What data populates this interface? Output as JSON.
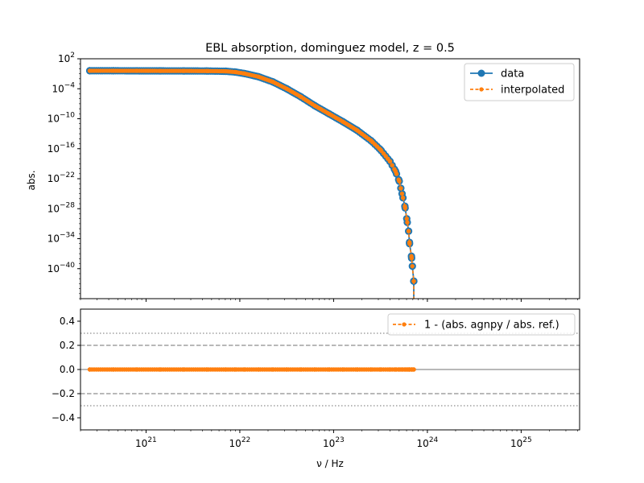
{
  "chart_data": [
    {
      "type": "line",
      "title": "EBL absorption, dominguez model, z = 0.5",
      "xlabel": "",
      "ylabel": "abs.",
      "xscale": "log",
      "yscale": "log",
      "xlim": [
        2e+20,
        4.2e+25
      ],
      "ylim": [
        1e-46,
        100.0
      ],
      "yticks": [
        {
          "exp": 2,
          "label": "10",
          "sup": "2"
        },
        {
          "exp": -4,
          "label": "10",
          "sup": "−4"
        },
        {
          "exp": -10,
          "label": "10",
          "sup": "−10"
        },
        {
          "exp": -16,
          "label": "10",
          "sup": "−16"
        },
        {
          "exp": -22,
          "label": "10",
          "sup": "−22"
        },
        {
          "exp": -28,
          "label": "10",
          "sup": "−28"
        },
        {
          "exp": -34,
          "label": "10",
          "sup": "−34"
        },
        {
          "exp": -40,
          "label": "10",
          "sup": "−40"
        }
      ],
      "legend_position": "top-right",
      "grid": false,
      "series": [
        {
          "name": "data",
          "color": "#1f77b4",
          "style": "solid-circle-markers",
          "points": [
            [
              20.4,
              -0.4
            ],
            [
              20.65,
              -0.4
            ],
            [
              20.9,
              -0.41
            ],
            [
              21.15,
              -0.42
            ],
            [
              21.4,
              -0.43
            ],
            [
              21.65,
              -0.45
            ],
            [
              21.85,
              -0.5
            ],
            [
              21.95,
              -0.65
            ],
            [
              22.05,
              -0.95
            ],
            [
              22.2,
              -1.6
            ],
            [
              22.35,
              -2.6
            ],
            [
              22.5,
              -4.0
            ],
            [
              22.65,
              -5.6
            ],
            [
              22.8,
              -7.4
            ],
            [
              22.95,
              -9.0
            ],
            [
              23.1,
              -10.6
            ],
            [
              23.25,
              -12.3
            ],
            [
              23.4,
              -14.4
            ],
            [
              23.5,
              -16.2
            ],
            [
              23.6,
              -18.5
            ],
            [
              23.66,
              -20.5
            ],
            [
              23.7,
              -22.5
            ],
            [
              23.73,
              -25.0
            ],
            [
              23.76,
              -27.5
            ],
            [
              23.78,
              -30.0
            ],
            [
              23.8,
              -32.5
            ],
            [
              23.81,
              -35.0
            ],
            [
              23.83,
              -37.5
            ],
            [
              23.84,
              -39.5
            ],
            [
              23.855,
              -42.5
            ]
          ]
        },
        {
          "name": "interpolated",
          "color": "#ff7f0e",
          "style": "dashed-small-markers",
          "points": [
            [
              20.4,
              -0.4
            ],
            [
              20.65,
              -0.4
            ],
            [
              20.9,
              -0.41
            ],
            [
              21.15,
              -0.42
            ],
            [
              21.4,
              -0.43
            ],
            [
              21.65,
              -0.45
            ],
            [
              21.85,
              -0.5
            ],
            [
              21.95,
              -0.65
            ],
            [
              22.05,
              -0.95
            ],
            [
              22.2,
              -1.6
            ],
            [
              22.35,
              -2.6
            ],
            [
              22.5,
              -4.0
            ],
            [
              22.65,
              -5.6
            ],
            [
              22.8,
              -7.4
            ],
            [
              22.95,
              -9.0
            ],
            [
              23.1,
              -10.6
            ],
            [
              23.25,
              -12.3
            ],
            [
              23.4,
              -14.4
            ],
            [
              23.5,
              -16.2
            ],
            [
              23.6,
              -18.5
            ],
            [
              23.66,
              -20.5
            ],
            [
              23.7,
              -22.5
            ],
            [
              23.73,
              -25.0
            ],
            [
              23.76,
              -27.5
            ],
            [
              23.78,
              -30.0
            ],
            [
              23.8,
              -32.5
            ],
            [
              23.81,
              -35.0
            ],
            [
              23.83,
              -37.5
            ],
            [
              23.84,
              -39.5
            ],
            [
              23.855,
              -42.5
            ]
          ]
        }
      ]
    },
    {
      "type": "line",
      "title": "",
      "xlabel": "ν / Hz",
      "ylabel": "",
      "xscale": "log",
      "yscale": "linear",
      "xlim": [
        2e+20,
        4.2e+25
      ],
      "ylim": [
        -0.5,
        0.5
      ],
      "xticks": [
        {
          "exp": 21,
          "label": "10",
          "sup": "21"
        },
        {
          "exp": 22,
          "label": "10",
          "sup": "22"
        },
        {
          "exp": 23,
          "label": "10",
          "sup": "23"
        },
        {
          "exp": 24,
          "label": "10",
          "sup": "24"
        },
        {
          "exp": 25,
          "label": "10",
          "sup": "25"
        }
      ],
      "yticks": [
        {
          "value": 0.4,
          "label": "0.4"
        },
        {
          "value": 0.2,
          "label": "0.2"
        },
        {
          "value": 0.0,
          "label": "0.0"
        },
        {
          "value": -0.2,
          "label": "−0.2"
        },
        {
          "value": -0.4,
          "label": "−0.4"
        }
      ],
      "reference_lines": [
        {
          "y": 0.0,
          "style": "solid",
          "color": "#a0a0a0"
        },
        {
          "y": 0.2,
          "style": "dashed",
          "color": "#a0a0a0"
        },
        {
          "y": -0.2,
          "style": "dashed",
          "color": "#a0a0a0"
        },
        {
          "y": 0.3,
          "style": "dotted",
          "color": "#a0a0a0"
        },
        {
          "y": -0.3,
          "style": "dotted",
          "color": "#a0a0a0"
        }
      ],
      "legend_position": "top-right",
      "series": [
        {
          "name": "1 - (abs. agnpy / abs. ref.)",
          "color": "#ff7f0e",
          "style": "dashed-small-markers",
          "x_range_log": [
            20.4,
            23.855
          ],
          "value": 0.0
        }
      ]
    }
  ]
}
